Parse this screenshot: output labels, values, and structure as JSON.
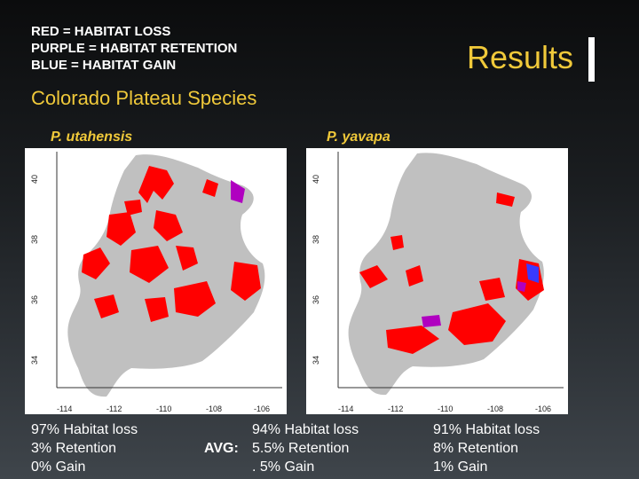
{
  "legend": {
    "red": "RED = HABITAT LOSS",
    "purple": "PURPLE = HABITAT RETENTION",
    "blue": "BLUE = HABITAT GAIN"
  },
  "header": {
    "title": "Results"
  },
  "section_title": "Colorado Plateau Species",
  "species": [
    {
      "name": "P. utahensis"
    },
    {
      "name": "P. yavapa"
    }
  ],
  "maps": [
    {
      "y_ticks": [
        "40",
        "38",
        "36",
        "34"
      ],
      "x_ticks": [
        "-114",
        "-112",
        "-110",
        "-108",
        "-106"
      ]
    },
    {
      "y_ticks": [
        "40",
        "38",
        "36",
        "34"
      ],
      "x_ticks": [
        "-114",
        "-112",
        "-110",
        "-108",
        "-106"
      ]
    }
  ],
  "stats": {
    "left": [
      "97% Habitat loss",
      "3% Retention",
      "0% Gain"
    ],
    "avg_label": "AVG:",
    "avg": [
      "94% Habitat loss",
      "5.5% Retention",
      ". 5% Gain"
    ],
    "right": [
      "91% Habitat loss",
      "8% Retention",
      "1% Gain"
    ]
  },
  "colors": {
    "loss": "#ff0000",
    "retention": "#b000c0",
    "gain": "#3a3aff",
    "range": "#c0c0c0",
    "accent": "#f0c93a"
  }
}
